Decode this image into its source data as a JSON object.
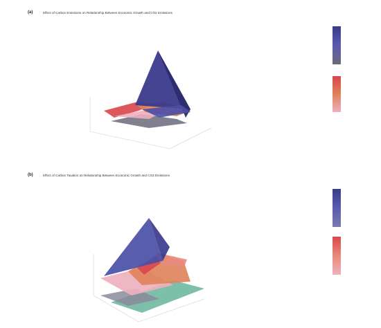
{
  "chart_data": [
    {
      "type": "surface",
      "panel_label": "(a)",
      "title": "Effect of Carbon Emissions on Relationship Between Economic Growth and CO2 Emissions",
      "colorbars": [
        {
          "ticks": [
            "",
            ""
          ]
        },
        {
          "ticks": [
            "",
            "",
            ""
          ]
        }
      ],
      "axis_labels": [
        "",
        "",
        ""
      ]
    },
    {
      "type": "surface",
      "panel_label": "(b)",
      "title": "Effect of Carbon Taxation on Relationship Between Economic Growth and CO2 Emissions",
      "colorbars": [
        {
          "ticks": [
            "",
            ""
          ]
        },
        {
          "ticks": [
            "",
            "",
            ""
          ]
        }
      ],
      "axis_labels": [
        "",
        "",
        ""
      ]
    }
  ],
  "colors": {
    "navy": "#3a3a8c",
    "indigo": "#4b4fa6",
    "red": "#d9464b",
    "orange": "#e0825a",
    "salmon": "#e88a7a",
    "pink": "#eeb0bf",
    "teal": "#6fb8a0",
    "gray": "#8a8a8a"
  }
}
